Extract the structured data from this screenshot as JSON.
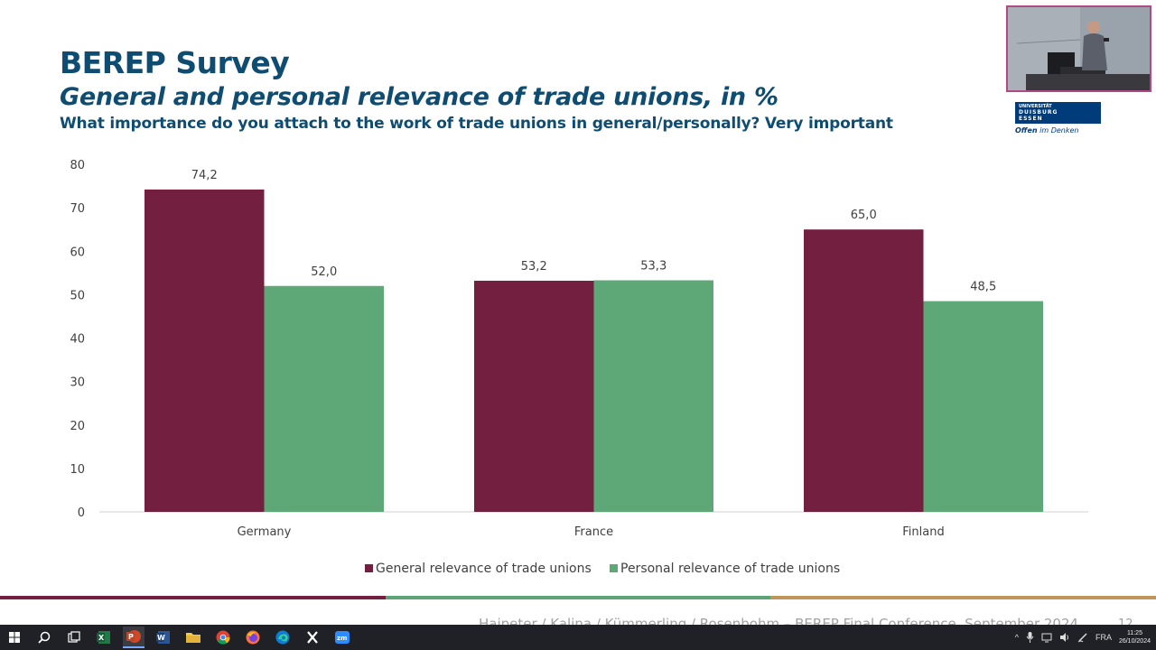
{
  "slide": {
    "title": "BEREP Survey",
    "subtitle": "General and personal relevance of trade unions, in %",
    "question": "What importance do you attach to the work of trade unions in general/personally? Very important",
    "logo": {
      "line1": "UNIVERSITÄT",
      "line2": "DUISBURG",
      "line3": "ESSEN",
      "tagline_bold": "Offen",
      "tagline_rest": " im Denken"
    },
    "footer": "Haipeter / Kalina / Kümmerling / Rosenbohm – BEREP Final Conference, September 2024",
    "page_number": "12",
    "stripe_colors": [
      "#732040",
      "#5aa475",
      "#c0955a"
    ]
  },
  "chart_data": {
    "type": "bar",
    "categories": [
      "Germany",
      "France",
      "Finland"
    ],
    "series": [
      {
        "name": "General relevance of trade unions",
        "color": "#732040",
        "values": [
          74.2,
          53.2,
          65.0
        ],
        "labels": [
          "74,2",
          "53,2",
          "65,0"
        ]
      },
      {
        "name": "Personal relevance of trade unions",
        "color": "#5ea878",
        "values": [
          52.0,
          53.3,
          48.5
        ],
        "labels": [
          "52,0",
          "53,3",
          "48,5"
        ]
      }
    ],
    "ylim": [
      0,
      80
    ],
    "yticks": [
      0,
      10,
      20,
      30,
      40,
      50,
      60,
      70,
      80
    ],
    "legend_position": "bottom",
    "grid": false
  },
  "taskbar": {
    "apps": [
      "windows-start",
      "search",
      "task-view",
      "excel",
      "powerpoint",
      "word",
      "file-explorer",
      "chrome",
      "firefox",
      "edge",
      "x-app",
      "zoom"
    ],
    "tray": {
      "language": "FRA",
      "time": "11:25",
      "date": "26/10/2024"
    }
  }
}
